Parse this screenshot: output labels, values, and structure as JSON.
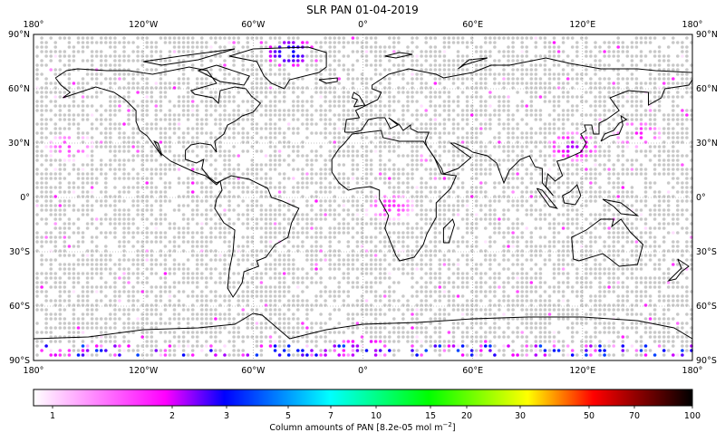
{
  "title": "SLR PAN 01-04-2019",
  "map": {
    "projection": "equirectangular",
    "lon_range": [
      -180,
      180
    ],
    "lat_range": [
      -90,
      90
    ],
    "lon_ticks": [
      "180°",
      "120°W",
      "60°W",
      "0°",
      "60°E",
      "120°E",
      "180°"
    ],
    "lat_ticks": [
      "90°N",
      "60°N",
      "30°N",
      "0°",
      "30°S",
      "60°S",
      "90°S"
    ],
    "gridlines": true,
    "no_data_color": "#c8c8c8",
    "coastline_color": "#000000",
    "hotspots": [
      {
        "region": "North Pacific (east)",
        "lon": -160,
        "lat": 28,
        "value": 1.6
      },
      {
        "region": "North Pacific (west)",
        "lon": 150,
        "lat": 35,
        "value": 1.8
      },
      {
        "region": "East China",
        "lon": 115,
        "lat": 28,
        "value": 2.2
      },
      {
        "region": "Central Africa",
        "lon": 15,
        "lat": -5,
        "value": 1.7
      },
      {
        "region": "Greenland",
        "lon": -40,
        "lat": 80,
        "value": 3
      },
      {
        "region": "Antarctica",
        "lon": 0,
        "lat": -84,
        "value": 2.5
      }
    ]
  },
  "colorbar": {
    "label": "Column amounts of PAN [8.2e-05 mol m",
    "label_sup": "−2",
    "label_end": "]",
    "scale": "log",
    "ticks": [
      "1",
      "2",
      "3",
      "5",
      "7",
      "10",
      "15",
      "20",
      "30",
      "50",
      "70",
      "100"
    ],
    "colors": [
      "#ffffff",
      "#ff00ff",
      "#0000ff",
      "#00ffff",
      "#00ff00",
      "#ffff00",
      "#ff0000",
      "#000000"
    ]
  }
}
